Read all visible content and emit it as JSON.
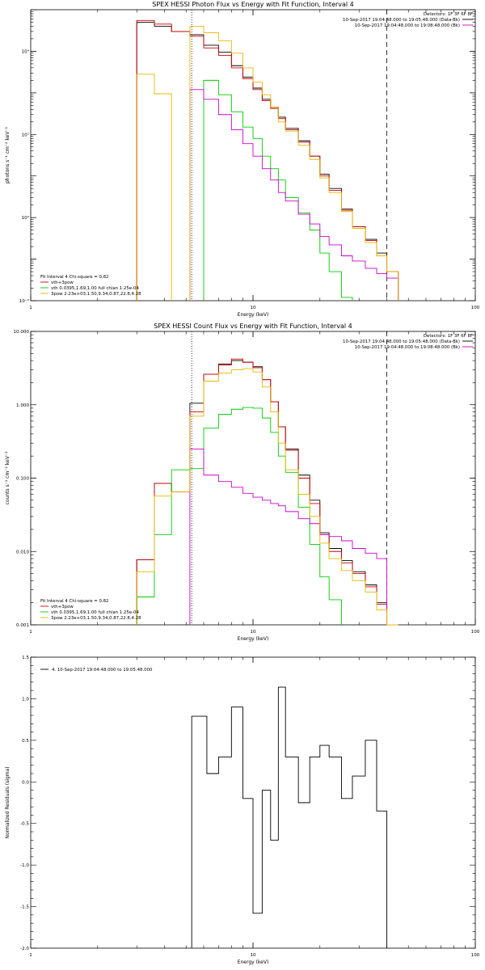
{
  "colors": {
    "black": "#000000",
    "red": "#cc0000",
    "purple": "#cc00cc",
    "green": "#00cc00",
    "yellow": "#e6b800"
  },
  "chart_data": [
    {
      "type": "line",
      "id": "photon",
      "title": "SPEX HESSI Photon Flux vs Energy with Fit Function, Interval 4",
      "xlabel": "Energy (keV)",
      "ylabel": "photons s⁻¹ cm⁻² keV⁻¹",
      "xscale": "log",
      "yscale": "log",
      "xlim": [
        1,
        100
      ],
      "ylim": [
        0.01,
        100000
      ],
      "xticks": [
        {
          "v": 1,
          "label": "1"
        },
        {
          "v": 10,
          "label": "10"
        },
        {
          "v": 100,
          "label": "100"
        }
      ],
      "yticks": [
        {
          "v": 0.01,
          "label": "10⁻²"
        },
        {
          "v": 1,
          "label": "10⁰"
        },
        {
          "v": 100,
          "label": "10²"
        },
        {
          "v": 10000,
          "label": "10⁴"
        }
      ],
      "vlines": [
        {
          "x": 5.3,
          "style": "dotted"
        },
        {
          "x": 40,
          "style": "dashed"
        }
      ],
      "header": {
        "detectors": "Detectors: 1F 3F 6F 8F",
        "line1": "10-Sep-2017 19:04:48.000 to 19:05:48.000 (Data-Bk)",
        "line2": "10-Sep-2017 19:04:48.000 to 19:08:48.000 (Bk)"
      },
      "legend": {
        "title": "Fit Interval  4   Chi-square = 0.82",
        "items": [
          "vth+3pow",
          "vth 0.0395,1.69,1.00  full chian 1.25e-04",
          "3pow 2.23e+03,1.50,9.34,0.87,22.8,4.28"
        ]
      },
      "edges": [
        3,
        3.6,
        4.3,
        5.2,
        6,
        7,
        8,
        9,
        10,
        11,
        12,
        13,
        14,
        16,
        18,
        20,
        22,
        25,
        28,
        32,
        36,
        40,
        45
      ],
      "series": [
        {
          "name": "Data-Bk",
          "color": "black",
          "values": [
            50000,
            40000,
            30000,
            25000,
            14000,
            9500,
            4500,
            2400,
            1300,
            700,
            450,
            260,
            140,
            70,
            30,
            11,
            5,
            1.6,
            0.6,
            0.3,
            0.14,
            0.05
          ]
        },
        {
          "name": "vth+3pow",
          "color": "red",
          "values": [
            55000,
            45000,
            30000,
            23000,
            12000,
            8000,
            4000,
            2200,
            1200,
            650,
            420,
            240,
            130,
            65,
            30,
            10,
            4.5,
            1.5,
            0.6,
            0.28,
            0.12,
            0.05
          ]
        },
        {
          "name": "Bk",
          "color": "purple",
          "values": [
            null,
            null,
            null,
            1200,
            700,
            300,
            130,
            60,
            30,
            15,
            8,
            4,
            2.5,
            1.2,
            0.7,
            0.35,
            0.22,
            0.12,
            0.09,
            0.06,
            0.045,
            0.035
          ]
        },
        {
          "name": "vth",
          "color": "green",
          "values": [
            null,
            null,
            null,
            null,
            2000,
            900,
            350,
            150,
            80,
            30,
            15,
            8,
            3,
            1.3,
            0.5,
            0.14,
            0.05,
            0.012,
            null,
            null,
            null,
            null
          ]
        },
        {
          "name": "3pow",
          "color": "yellow",
          "values": [
            2800,
            950,
            null,
            40000,
            28000,
            18000,
            9000,
            4000,
            1800,
            900,
            450,
            200,
            120,
            55,
            25,
            9,
            4,
            1.4,
            0.55,
            0.25,
            0.12,
            0.05
          ]
        }
      ]
    },
    {
      "type": "line",
      "id": "count",
      "title": "SPEX HESSI Count Flux vs Energy with Fit Function, Interval 4",
      "xlabel": "Energy (keV)",
      "ylabel": "counts s⁻¹ cm⁻² keV⁻¹",
      "xscale": "log",
      "yscale": "log",
      "xlim": [
        1,
        100
      ],
      "ylim": [
        0.001,
        10
      ],
      "xticks": [
        {
          "v": 1,
          "label": "1"
        },
        {
          "v": 10,
          "label": "10"
        },
        {
          "v": 100,
          "label": "100"
        }
      ],
      "yticks": [
        {
          "v": 0.001,
          "label": "0.001"
        },
        {
          "v": 0.01,
          "label": "0.010"
        },
        {
          "v": 0.1,
          "label": "0.100"
        },
        {
          "v": 1,
          "label": "1.000"
        },
        {
          "v": 10,
          "label": "10.000"
        }
      ],
      "vlines": [
        {
          "x": 5.3,
          "style": "dotted"
        },
        {
          "x": 40,
          "style": "dashed"
        }
      ],
      "header": {
        "detectors": "Detectors: 1F 3F 6F 8F",
        "line1": "10-Sep-2017 19:04:48.000 to 19:05:48.000 (Data-Bk)",
        "line2": "10-Sep-2017 19:04:48.000 to 19:08:48.000 (Bk)"
      },
      "legend": {
        "title": "Fit Interval  4   Chi-square = 0.82",
        "items": [
          "vth+3pow",
          "vth 0.0395,1.69,1.00  full chian 1.25e-04",
          "3pow 2.23e+03,1.50,9.34,0.87,22.8,4.28"
        ]
      },
      "edges": [
        3,
        3.6,
        4.3,
        5.2,
        6,
        7,
        8,
        9,
        10,
        11,
        12,
        13,
        14,
        16,
        18,
        20,
        22,
        25,
        28,
        32,
        36,
        40,
        45
      ],
      "series": [
        {
          "name": "Data-Bk",
          "color": "black",
          "values": [
            0.0077,
            0.085,
            0.065,
            1.05,
            2.6,
            3.6,
            4.0,
            3.8,
            3.3,
            2.2,
            1.1,
            0.5,
            0.25,
            0.11,
            0.05,
            0.018,
            0.011,
            0.0075,
            0.0053,
            0.0035,
            0.002,
            0.001
          ]
        },
        {
          "name": "vth+3pow",
          "color": "red",
          "values": [
            0.0077,
            0.085,
            0.065,
            0.8,
            2.6,
            3.5,
            4.2,
            3.8,
            3.2,
            2.2,
            1.1,
            0.5,
            0.24,
            0.1,
            0.045,
            0.017,
            0.01,
            0.007,
            0.005,
            0.0033,
            0.0019,
            0.001
          ]
        },
        {
          "name": "Bk",
          "color": "purple",
          "values": [
            null,
            null,
            null,
            0.25,
            0.11,
            0.09,
            0.075,
            0.062,
            0.055,
            0.05,
            0.045,
            0.042,
            0.035,
            0.028,
            0.024,
            0.017,
            0.016,
            0.014,
            0.011,
            0.0095,
            0.008,
            null
          ]
        },
        {
          "name": "vth",
          "color": "green",
          "values": [
            0.0024,
            0.017,
            0.13,
            0.135,
            0.48,
            0.74,
            0.87,
            0.92,
            0.9,
            0.66,
            0.42,
            0.2,
            0.12,
            0.04,
            0.0125,
            0.0045,
            0.0022,
            null,
            null,
            null,
            null,
            null
          ]
        },
        {
          "name": "3pow",
          "color": "yellow",
          "values": [
            0.0053,
            0.057,
            0.065,
            0.7,
            2.1,
            2.7,
            3.0,
            3.1,
            2.8,
            1.75,
            0.8,
            0.3,
            0.13,
            0.06,
            0.03,
            0.013,
            0.008,
            0.0055,
            0.004,
            0.0028,
            0.0016,
            0.001
          ]
        }
      ]
    },
    {
      "type": "line",
      "id": "residuals",
      "title": "",
      "xlabel": "Energy (keV)",
      "ylabel": "Normalized Residuals (sigma)",
      "xscale": "log",
      "yscale": "linear",
      "xlim": [
        1,
        100
      ],
      "ylim": [
        -2.0,
        1.5
      ],
      "xticks": [
        {
          "v": 1,
          "label": "1"
        },
        {
          "v": 10,
          "label": "10"
        },
        {
          "v": 100,
          "label": "100"
        }
      ],
      "yticks": [
        {
          "v": -2.0,
          "label": "-2.0"
        },
        {
          "v": -1.5,
          "label": "-1.5"
        },
        {
          "v": -1.0,
          "label": "-1.0"
        },
        {
          "v": -0.5,
          "label": "-0.5"
        },
        {
          "v": 0.0,
          "label": "0.0"
        },
        {
          "v": 0.5,
          "label": "0.5"
        },
        {
          "v": 1.0,
          "label": "1.0"
        },
        {
          "v": 1.5,
          "label": "1.5"
        }
      ],
      "legend": {
        "title": "",
        "items": [
          "4. 10-Sep-2017 19:04:48.000 to 19:05:48.000"
        ]
      },
      "edges": [
        5.3,
        6.2,
        7,
        8,
        9,
        10,
        11,
        12,
        13,
        14,
        16,
        18,
        20,
        22,
        25,
        28,
        32,
        36,
        40
      ],
      "series": [
        {
          "name": "4. 10-Sep-2017 19:04:48.000 to 19:05:48.000",
          "color": "black",
          "values": [
            0.79,
            0.1,
            0.3,
            0.9,
            -0.2,
            -1.58,
            -0.1,
            -0.7,
            1.14,
            0.3,
            -0.25,
            0.3,
            0.44,
            0.3,
            -0.2,
            0.07,
            0.5,
            -0.35
          ]
        }
      ]
    }
  ]
}
